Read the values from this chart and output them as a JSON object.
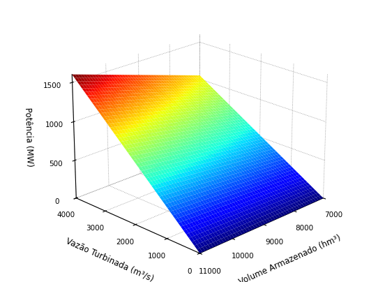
{
  "volume_min": 7000,
  "volume_max": 11000,
  "vazao_min": 0,
  "vazao_max": 4000,
  "potencia_min": 0,
  "potencia_max": 1600,
  "xlabel": "Volume Armazenado (hm³)",
  "ylabel": "Vazão Turbinada (m³/s)",
  "zlabel": "Potência (MW)",
  "volume_ticks": [
    7000,
    8000,
    9000,
    10000,
    11000
  ],
  "vazao_ticks": [
    0,
    1000,
    2000,
    3000,
    4000
  ],
  "potencia_ticks": [
    0,
    500,
    1000,
    1500
  ],
  "background_color": "#ffffff",
  "colormap": "jet",
  "elev": 22,
  "azim": -135,
  "n_points": 50,
  "a_coef": 0.021875,
  "b_coef": 3.4375e-05
}
